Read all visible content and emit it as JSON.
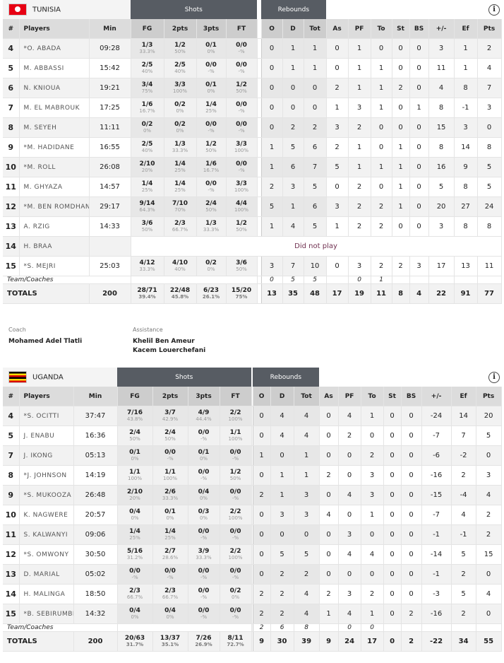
{
  "headers": {
    "num": "#",
    "players": "Players",
    "min": "Min",
    "shots": "Shots",
    "rebounds": "Rebounds",
    "fg": "FG",
    "p2": "2pts",
    "p3": "3pts",
    "ft": "FT",
    "o": "O",
    "d": "D",
    "tot": "Tot",
    "as": "As",
    "pf": "PF",
    "to": "To",
    "st": "St",
    "bs": "BS",
    "pm": "+/-",
    "ef": "Ef",
    "pts": "Pts",
    "team_coaches": "Team/Coaches",
    "totals": "TOTALS",
    "info_icon": "i"
  },
  "teams": [
    {
      "name": "TUNISIA",
      "flag": "tunisia-flag",
      "players": [
        {
          "num": "4",
          "name": "*O. ABADA",
          "min": "09:28",
          "fg": [
            "1/3",
            "33.3%"
          ],
          "p2": [
            "1/2",
            "50%"
          ],
          "p3": [
            "0/1",
            "0%"
          ],
          "ft": [
            "0/0",
            "-%"
          ],
          "o": "0",
          "d": "1",
          "tot": "1",
          "as": "0",
          "pf": "1",
          "to": "0",
          "st": "0",
          "bs": "0",
          "pm": "3",
          "ef": "1",
          "pts": "2"
        },
        {
          "num": "5",
          "name": "M. ABBASSI",
          "min": "15:42",
          "fg": [
            "2/5",
            "40%"
          ],
          "p2": [
            "2/5",
            "40%"
          ],
          "p3": [
            "0/0",
            "-%"
          ],
          "ft": [
            "0/0",
            "-%"
          ],
          "o": "0",
          "d": "1",
          "tot": "1",
          "as": "0",
          "pf": "1",
          "to": "1",
          "st": "0",
          "bs": "0",
          "pm": "11",
          "ef": "1",
          "pts": "4"
        },
        {
          "num": "6",
          "name": "N. KNIOUA",
          "min": "19:21",
          "fg": [
            "3/4",
            "75%"
          ],
          "p2": [
            "3/3",
            "100%"
          ],
          "p3": [
            "0/1",
            "0%"
          ],
          "ft": [
            "1/2",
            "50%"
          ],
          "o": "0",
          "d": "0",
          "tot": "0",
          "as": "2",
          "pf": "1",
          "to": "1",
          "st": "2",
          "bs": "0",
          "pm": "4",
          "ef": "8",
          "pts": "7"
        },
        {
          "num": "7",
          "name": "M. EL MABROUK",
          "min": "17:25",
          "fg": [
            "1/6",
            "16.7%"
          ],
          "p2": [
            "0/2",
            "0%"
          ],
          "p3": [
            "1/4",
            "25%"
          ],
          "ft": [
            "0/0",
            "-%"
          ],
          "o": "0",
          "d": "0",
          "tot": "0",
          "as": "1",
          "pf": "3",
          "to": "1",
          "st": "0",
          "bs": "1",
          "pm": "8",
          "ef": "-1",
          "pts": "3"
        },
        {
          "num": "8",
          "name": "M. SEYEH",
          "min": "11:11",
          "fg": [
            "0/2",
            "0%"
          ],
          "p2": [
            "0/2",
            "0%"
          ],
          "p3": [
            "0/0",
            "-%"
          ],
          "ft": [
            "0/0",
            "-%"
          ],
          "o": "0",
          "d": "2",
          "tot": "2",
          "as": "3",
          "pf": "2",
          "to": "0",
          "st": "0",
          "bs": "0",
          "pm": "15",
          "ef": "3",
          "pts": "0"
        },
        {
          "num": "9",
          "name": "*M. HADIDANE",
          "min": "16:55",
          "fg": [
            "2/5",
            "40%"
          ],
          "p2": [
            "1/3",
            "33.3%"
          ],
          "p3": [
            "1/2",
            "50%"
          ],
          "ft": [
            "3/3",
            "100%"
          ],
          "o": "1",
          "d": "5",
          "tot": "6",
          "as": "2",
          "pf": "1",
          "to": "0",
          "st": "1",
          "bs": "0",
          "pm": "8",
          "ef": "14",
          "pts": "8"
        },
        {
          "num": "10",
          "name": "*M. ROLL",
          "min": "26:08",
          "fg": [
            "2/10",
            "20%"
          ],
          "p2": [
            "1/4",
            "25%"
          ],
          "p3": [
            "1/6",
            "16.7%"
          ],
          "ft": [
            "0/0",
            "-%"
          ],
          "o": "1",
          "d": "6",
          "tot": "7",
          "as": "5",
          "pf": "1",
          "to": "1",
          "st": "1",
          "bs": "0",
          "pm": "16",
          "ef": "9",
          "pts": "5"
        },
        {
          "num": "11",
          "name": "M. GHYAZA",
          "min": "14:57",
          "fg": [
            "1/4",
            "25%"
          ],
          "p2": [
            "1/4",
            "25%"
          ],
          "p3": [
            "0/0",
            "-%"
          ],
          "ft": [
            "3/3",
            "100%"
          ],
          "o": "2",
          "d": "3",
          "tot": "5",
          "as": "0",
          "pf": "2",
          "to": "0",
          "st": "1",
          "bs": "0",
          "pm": "5",
          "ef": "8",
          "pts": "5"
        },
        {
          "num": "12",
          "name": "*M. BEN ROMDHANE",
          "min": "29:17",
          "fg": [
            "9/14",
            "64.3%"
          ],
          "p2": [
            "7/10",
            "70%"
          ],
          "p3": [
            "2/4",
            "50%"
          ],
          "ft": [
            "4/4",
            "100%"
          ],
          "o": "5",
          "d": "1",
          "tot": "6",
          "as": "3",
          "pf": "2",
          "to": "2",
          "st": "1",
          "bs": "0",
          "pm": "20",
          "ef": "27",
          "pts": "24"
        },
        {
          "num": "13",
          "name": "A. RZIG",
          "min": "14:33",
          "fg": [
            "3/6",
            "50%"
          ],
          "p2": [
            "2/3",
            "66.7%"
          ],
          "p3": [
            "1/3",
            "33.3%"
          ],
          "ft": [
            "1/2",
            "50%"
          ],
          "o": "1",
          "d": "4",
          "tot": "5",
          "as": "1",
          "pf": "2",
          "to": "2",
          "st": "0",
          "bs": "0",
          "pm": "3",
          "ef": "8",
          "pts": "8"
        },
        {
          "num": "14",
          "name": "H. BRAA",
          "min": "",
          "dnp": "Did not play"
        },
        {
          "num": "15",
          "name": "*S. MEJRI",
          "min": "25:03",
          "fg": [
            "4/12",
            "33.3%"
          ],
          "p2": [
            "4/10",
            "40%"
          ],
          "p3": [
            "0/2",
            "0%"
          ],
          "ft": [
            "3/6",
            "50%"
          ],
          "o": "3",
          "d": "7",
          "tot": "10",
          "as": "0",
          "pf": "3",
          "to": "2",
          "st": "2",
          "bs": "3",
          "pm": "17",
          "ef": "13",
          "pts": "11"
        }
      ],
      "team_row": {
        "o": "0",
        "d": "5",
        "tot": "5",
        "as": "",
        "pf": "0",
        "to": "1"
      },
      "totals": {
        "min": "200",
        "fg": [
          "28/71",
          "39.4%"
        ],
        "p2": [
          "22/48",
          "45.8%"
        ],
        "p3": [
          "6/23",
          "26.1%"
        ],
        "ft": [
          "15/20",
          "75%"
        ],
        "o": "13",
        "d": "35",
        "tot": "48",
        "as": "17",
        "pf": "19",
        "to": "11",
        "st": "8",
        "bs": "4",
        "pm": "22",
        "ef": "91",
        "pts": "77"
      }
    },
    {
      "name": "UGANDA",
      "flag": "uganda-flag",
      "players": [
        {
          "num": "4",
          "name": "*S. OCITTI",
          "min": "37:47",
          "fg": [
            "7/16",
            "43.8%"
          ],
          "p2": [
            "3/7",
            "42.9%"
          ],
          "p3": [
            "4/9",
            "44.4%"
          ],
          "ft": [
            "2/2",
            "100%"
          ],
          "o": "0",
          "d": "4",
          "tot": "4",
          "as": "0",
          "pf": "4",
          "to": "1",
          "st": "0",
          "bs": "0",
          "pm": "-24",
          "ef": "14",
          "pts": "20"
        },
        {
          "num": "5",
          "name": "J. ENABU",
          "min": "16:36",
          "fg": [
            "2/4",
            "50%"
          ],
          "p2": [
            "2/4",
            "50%"
          ],
          "p3": [
            "0/0",
            "-%"
          ],
          "ft": [
            "1/1",
            "100%"
          ],
          "o": "0",
          "d": "4",
          "tot": "4",
          "as": "0",
          "pf": "2",
          "to": "0",
          "st": "0",
          "bs": "0",
          "pm": "-7",
          "ef": "7",
          "pts": "5"
        },
        {
          "num": "7",
          "name": "J. IKONG",
          "min": "05:13",
          "fg": [
            "0/1",
            "0%"
          ],
          "p2": [
            "0/0",
            "-%"
          ],
          "p3": [
            "0/1",
            "0%"
          ],
          "ft": [
            "0/0",
            "-%"
          ],
          "o": "1",
          "d": "0",
          "tot": "1",
          "as": "0",
          "pf": "0",
          "to": "2",
          "st": "0",
          "bs": "0",
          "pm": "-6",
          "ef": "-2",
          "pts": "0"
        },
        {
          "num": "8",
          "name": "*J. JOHNSON",
          "min": "14:19",
          "fg": [
            "1/1",
            "100%"
          ],
          "p2": [
            "1/1",
            "100%"
          ],
          "p3": [
            "0/0",
            "-%"
          ],
          "ft": [
            "1/2",
            "50%"
          ],
          "o": "0",
          "d": "1",
          "tot": "1",
          "as": "2",
          "pf": "0",
          "to": "3",
          "st": "0",
          "bs": "0",
          "pm": "-16",
          "ef": "2",
          "pts": "3"
        },
        {
          "num": "9",
          "name": "*S. MUKOOZA",
          "min": "26:48",
          "fg": [
            "2/10",
            "20%"
          ],
          "p2": [
            "2/6",
            "33.3%"
          ],
          "p3": [
            "0/4",
            "0%"
          ],
          "ft": [
            "0/0",
            "-%"
          ],
          "o": "2",
          "d": "1",
          "tot": "3",
          "as": "0",
          "pf": "4",
          "to": "3",
          "st": "0",
          "bs": "0",
          "pm": "-15",
          "ef": "-4",
          "pts": "4"
        },
        {
          "num": "10",
          "name": "K. NAGWERE",
          "min": "20:57",
          "fg": [
            "0/4",
            "0%"
          ],
          "p2": [
            "0/1",
            "0%"
          ],
          "p3": [
            "0/3",
            "0%"
          ],
          "ft": [
            "2/2",
            "100%"
          ],
          "o": "0",
          "d": "3",
          "tot": "3",
          "as": "4",
          "pf": "0",
          "to": "1",
          "st": "0",
          "bs": "0",
          "pm": "-7",
          "ef": "4",
          "pts": "2"
        },
        {
          "num": "11",
          "name": "S. KALWANYI",
          "min": "09:06",
          "fg": [
            "1/4",
            "25%"
          ],
          "p2": [
            "1/4",
            "25%"
          ],
          "p3": [
            "0/0",
            "-%"
          ],
          "ft": [
            "0/0",
            "-%"
          ],
          "o": "0",
          "d": "0",
          "tot": "0",
          "as": "0",
          "pf": "3",
          "to": "0",
          "st": "0",
          "bs": "0",
          "pm": "-1",
          "ef": "-1",
          "pts": "2"
        },
        {
          "num": "12",
          "name": "*S. OMWONY",
          "min": "30:50",
          "fg": [
            "5/16",
            "31.2%"
          ],
          "p2": [
            "2/7",
            "28.6%"
          ],
          "p3": [
            "3/9",
            "33.3%"
          ],
          "ft": [
            "2/2",
            "100%"
          ],
          "o": "0",
          "d": "5",
          "tot": "5",
          "as": "0",
          "pf": "4",
          "to": "4",
          "st": "0",
          "bs": "0",
          "pm": "-14",
          "ef": "5",
          "pts": "15"
        },
        {
          "num": "13",
          "name": "D. MARIAL",
          "min": "05:02",
          "fg": [
            "0/0",
            "-%"
          ],
          "p2": [
            "0/0",
            "-%"
          ],
          "p3": [
            "0/0",
            "-%"
          ],
          "ft": [
            "0/0",
            "-%"
          ],
          "o": "0",
          "d": "2",
          "tot": "2",
          "as": "0",
          "pf": "0",
          "to": "0",
          "st": "0",
          "bs": "0",
          "pm": "-1",
          "ef": "2",
          "pts": "0"
        },
        {
          "num": "14",
          "name": "H. MALINGA",
          "min": "18:50",
          "fg": [
            "2/3",
            "66.7%"
          ],
          "p2": [
            "2/3",
            "66.7%"
          ],
          "p3": [
            "0/0",
            "-%"
          ],
          "ft": [
            "0/2",
            "0%"
          ],
          "o": "2",
          "d": "2",
          "tot": "4",
          "as": "2",
          "pf": "3",
          "to": "2",
          "st": "0",
          "bs": "0",
          "pm": "-3",
          "ef": "5",
          "pts": "4"
        },
        {
          "num": "15",
          "name": "*B. SEBIRUMBI",
          "min": "14:32",
          "fg": [
            "0/4",
            "0%"
          ],
          "p2": [
            "0/4",
            "0%"
          ],
          "p3": [
            "0/0",
            "-%"
          ],
          "ft": [
            "0/0",
            "-%"
          ],
          "o": "2",
          "d": "2",
          "tot": "4",
          "as": "1",
          "pf": "4",
          "to": "1",
          "st": "0",
          "bs": "2",
          "pm": "-16",
          "ef": "2",
          "pts": "0"
        }
      ],
      "team_row": {
        "o": "2",
        "d": "6",
        "tot": "8",
        "as": "",
        "pf": "0",
        "to": "0"
      },
      "totals": {
        "min": "200",
        "fg": [
          "20/63",
          "31.7%"
        ],
        "p2": [
          "13/37",
          "35.1%"
        ],
        "p3": [
          "7/26",
          "26.9%"
        ],
        "ft": [
          "8/11",
          "72.7%"
        ],
        "o": "9",
        "d": "30",
        "tot": "39",
        "as": "9",
        "pf": "24",
        "to": "17",
        "st": "0",
        "bs": "2",
        "pm": "-22",
        "ef": "34",
        "pts": "55"
      }
    }
  ],
  "staff": {
    "coach_label": "Coach",
    "coach": "Mohamed Adel Tlatli",
    "assistance_label": "Assistance",
    "assistants": [
      "Khelil Ben Ameur",
      "Kacem Louerchefani"
    ]
  },
  "colors": {
    "group_header": "#575c63",
    "header": "#dcdcdc",
    "row_alt": "#f2f2f2"
  }
}
